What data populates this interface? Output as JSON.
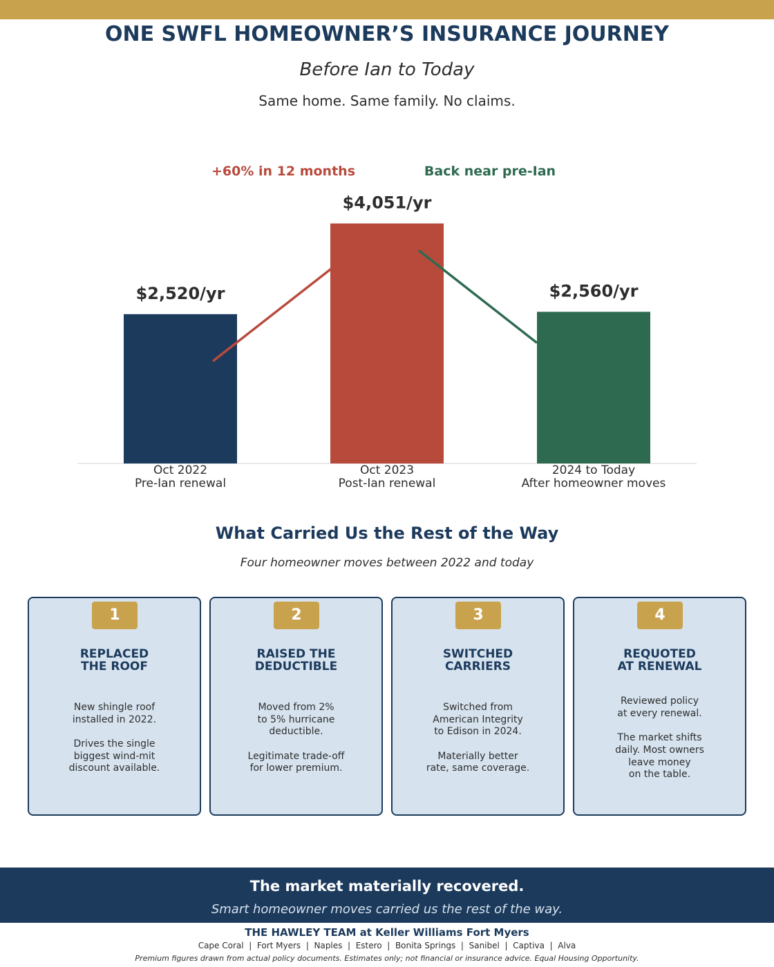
{
  "header": {
    "title": "ONE SWFL HOMEOWNER’S INSURANCE JOURNEY",
    "subtitle": "Before Ian to Today",
    "tagline": "Same home. Same family. No claims."
  },
  "chart_data": {
    "type": "bar",
    "categories": [
      "Oct 2022",
      "Oct 2023",
      "2024 to Today"
    ],
    "category_notes": [
      "Pre-Ian renewal",
      "Post-Ian renewal",
      "After homeowner moves"
    ],
    "values": [
      2520,
      4051,
      2560
    ],
    "value_labels": [
      "$2,520/yr",
      "$4,051/yr",
      "$2,560/yr"
    ],
    "colors": [
      "#1c3a5c",
      "#b84a3c",
      "#2e6a50"
    ],
    "ylim": [
      0,
      4500
    ],
    "annotations": [
      {
        "text": "+60% in 12 months",
        "color": "#b84a3c"
      },
      {
        "text": "Back near pre-Ian",
        "color": "#2e6a50"
      }
    ]
  },
  "moves": {
    "title": "What Carried Us the Rest of the Way",
    "subtitle": "Four homeowner moves between 2022 and today",
    "cards": [
      {
        "number": 1,
        "title_lines": [
          "REPLACED",
          "THE ROOF"
        ],
        "body": [
          [
            "New shingle roof",
            "installed in 2022."
          ],
          [
            "Drives the single",
            "biggest wind-mit",
            "discount available."
          ]
        ]
      },
      {
        "number": 2,
        "title_lines": [
          "RAISED THE",
          "DEDUCTIBLE"
        ],
        "body": [
          [
            "Moved from 2%",
            "to 5% hurricane",
            "deductible."
          ],
          [
            "Legitimate trade-off",
            "for lower premium."
          ]
        ]
      },
      {
        "number": 3,
        "title_lines": [
          "SWITCHED",
          "CARRIERS"
        ],
        "body": [
          [
            "Switched from",
            "American Integrity",
            "to Edison in 2024."
          ],
          [
            "Materially better",
            "rate, same coverage."
          ]
        ]
      },
      {
        "number": 4,
        "title_lines": [
          "REQUOTED",
          "AT RENEWAL"
        ],
        "body": [
          [
            "Reviewed policy",
            "at every renewal."
          ],
          [
            "The market shifts",
            "daily. Most owners",
            "leave money",
            "on the table."
          ]
        ]
      }
    ]
  },
  "footer": {
    "headline": "The market materially recovered.",
    "subline": "Smart homeowner moves carried us the rest of the way.",
    "team": "THE HAWLEY TEAM at Keller Williams Fort Myers",
    "locations": "Cape Coral  |  Fort Myers  |  Naples  |  Estero  |  Bonita Springs  |  Sanibel  |  Captiva  |  Alva",
    "disclaimer": "Premium figures drawn from actual policy documents. Estimates only; not financial or insurance advice. Equal Housing Opportunity."
  }
}
